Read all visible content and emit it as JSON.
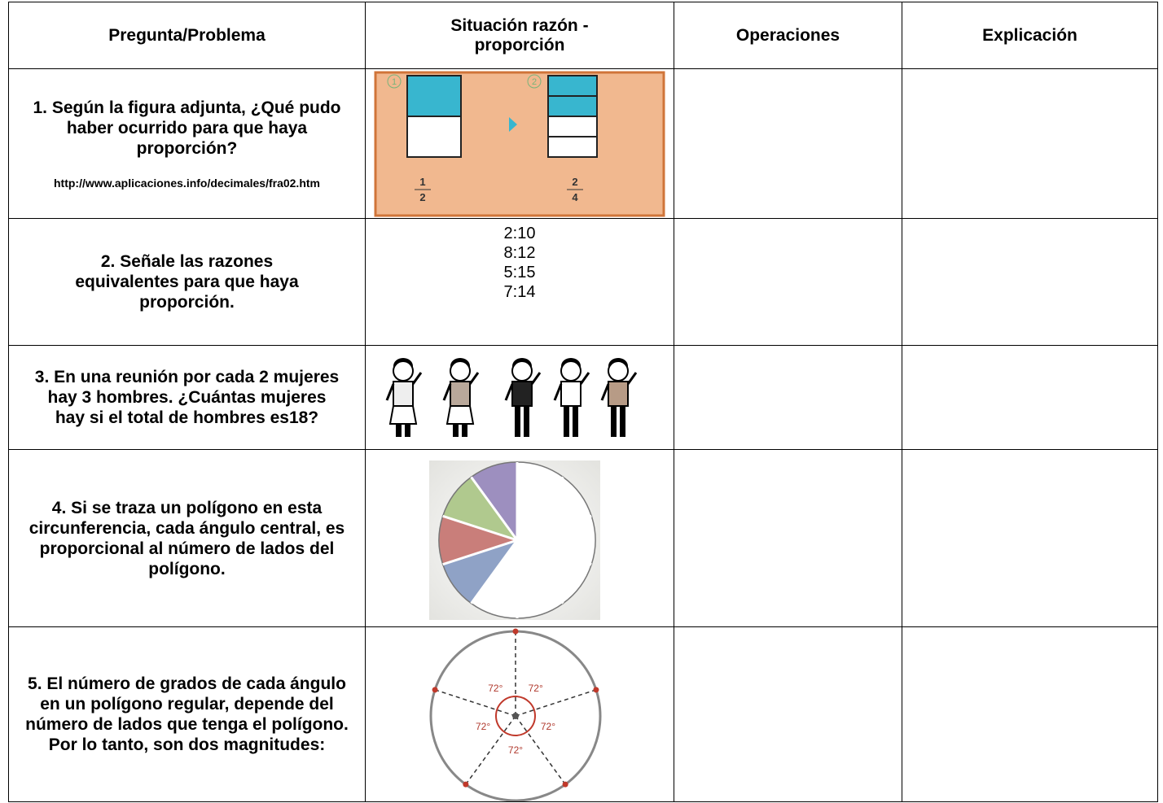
{
  "table": {
    "headers": [
      "Pregunta/Problema",
      "Situación razón - proporción",
      "Operaciones",
      "Explicación"
    ],
    "rows": [
      {
        "question": "1. Según la figura adjunta, ¿Qué pudo haber ocurrido para que haya proporción?",
        "source": "http://www.aplicaciones.info/decimales/fra02.htm",
        "figure": {
          "steps": [
            "1",
            "2"
          ],
          "fractions": [
            {
              "numerator": "1",
              "denominator": "2"
            },
            {
              "numerator": "2",
              "denominator": "4"
            }
          ]
        }
      },
      {
        "question": "2. Señale las razones equivalentes para que haya proporción.",
        "ratios": [
          "2:10",
          "8:12",
          "5:15",
          "7:14"
        ]
      },
      {
        "question": "3. En una reunión por cada 2 mujeres hay 3 hombres. ¿Cuántas mujeres hay si el total de hombres es18?"
      },
      {
        "question": "4. Si se traza un polígono en esta circunferencia, cada ángulo central, es proporcional al número de lados del polígono."
      },
      {
        "question": "5. El número de grados de cada ángulo en un polígono regular, depende del número de lados que tenga el polígono. Por lo tanto, son dos magnitudes:",
        "figure": {
          "angle_labels": [
            "72°",
            "72°",
            "72°",
            "72°",
            "72°"
          ]
        }
      }
    ]
  }
}
